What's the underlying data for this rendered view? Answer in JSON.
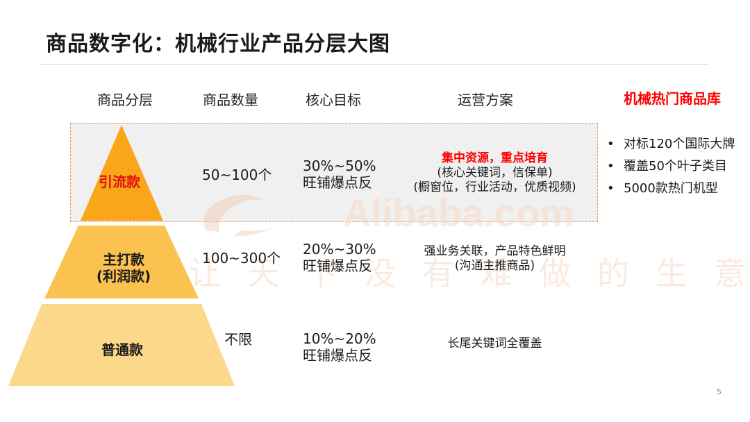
{
  "title": "商品数字化：机械行业产品分层大图",
  "headers": {
    "tier": "商品分层",
    "quantity": "商品数量",
    "goal": "核心目标",
    "plan": "运营方案",
    "hot_library": "机械热门商品库"
  },
  "tiers": [
    {
      "name": "引流款",
      "quantity": "50~100个",
      "goal_line1": "30%~50%",
      "goal_line2": "旺铺爆点反",
      "plan_line1": "集中资源，重点培育",
      "plan_line2": "(核心关键词，信保单)",
      "plan_line3": "(橱窗位，行业活动，优质视频)"
    },
    {
      "name_line1": "主打款",
      "name_line2": "(利润款)",
      "quantity": "100~300个",
      "goal_line1": "20%~30%",
      "goal_line2": "旺铺爆点反",
      "plan_line1": "强业务关联，产品特色鲜明",
      "plan_line2": "(沟通主推商品)"
    },
    {
      "name": "普通款",
      "quantity": "不限",
      "goal_line1": "10%~20%",
      "goal_line2": "旺铺爆点反",
      "plan_line1": "长尾关键词全覆盖"
    }
  ],
  "hot_library_items": [
    "对标120个国际大牌",
    "覆盖50个叶子类目",
    "5000款热门机型"
  ],
  "watermark": {
    "en": "Alibaba.com",
    "cn": "让天下没有难做的生意"
  },
  "page_number": "5",
  "colors": {
    "tier_top": "#f9a61a",
    "tier_mid": "#fbc24f",
    "tier_bottom": "#fcd88a",
    "accent_red": "#ff0000",
    "highlight_border": "#e39a5f",
    "highlight_fill": "#f0f0f0"
  }
}
